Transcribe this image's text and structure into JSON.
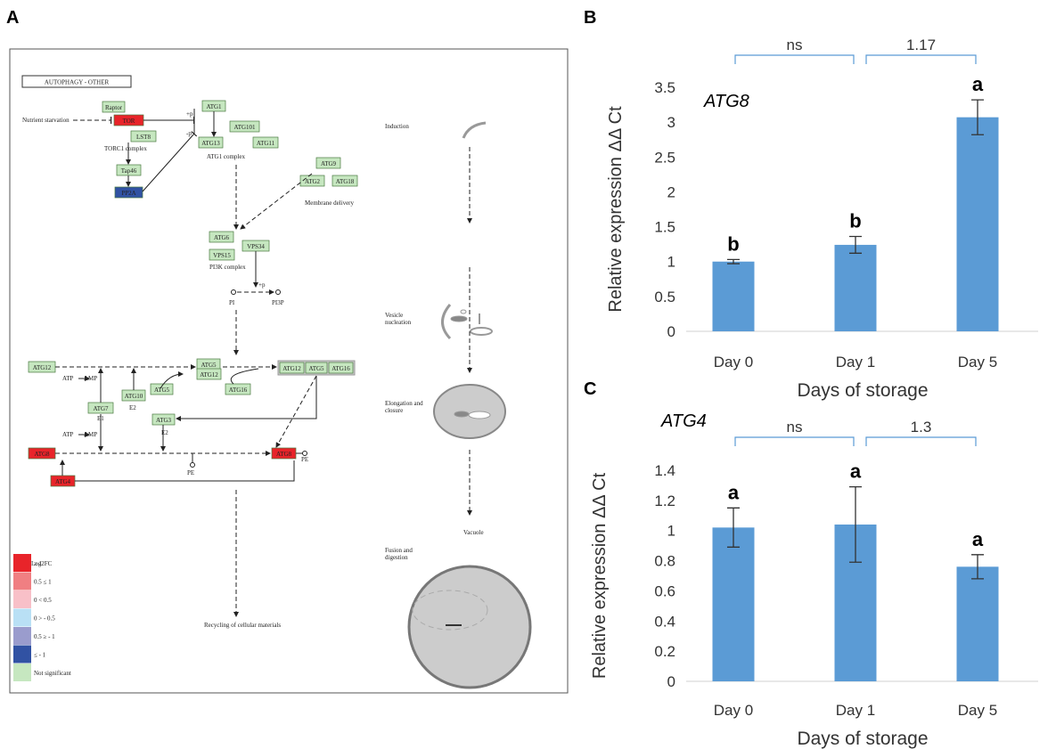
{
  "panel_labels": [
    "A",
    "B",
    "C"
  ],
  "diagram": {
    "title": "AUTOPHAGY - OTHER",
    "nodes": [
      {
        "label": "Raptor",
        "fill": "#c6e7c0"
      },
      {
        "label": "TOR",
        "fill": "#e8242a"
      },
      {
        "label": "LST8",
        "fill": "#c6e7c0"
      },
      {
        "label": "Tap46",
        "fill": "#c6e7c0"
      },
      {
        "label": "PP2A",
        "fill": "#3152a3"
      },
      {
        "label": "ATG1",
        "fill": "#c6e7c0"
      },
      {
        "label": "ATG101",
        "fill": "#c6e7c0"
      },
      {
        "label": "ATG13",
        "fill": "#c6e7c0"
      },
      {
        "label": "ATG11",
        "fill": "#c6e7c0"
      },
      {
        "label": "ATG9",
        "fill": "#c6e7c0"
      },
      {
        "label": "ATG2",
        "fill": "#c6e7c0"
      },
      {
        "label": "ATG18",
        "fill": "#c6e7c0"
      },
      {
        "label": "ATG6",
        "fill": "#c6e7c0"
      },
      {
        "label": "VPS34",
        "fill": "#c6e7c0"
      },
      {
        "label": "VPS15",
        "fill": "#c6e7c0"
      },
      {
        "label": "ATG12",
        "fill": "#c6e7c0"
      },
      {
        "label": "ATG5",
        "fill": "#c6e7c0"
      },
      {
        "label": "ATG12",
        "fill": "#c6e7c0"
      },
      {
        "label": "ATG5",
        "fill": "#c6e7c0"
      },
      {
        "label": "ATG16",
        "fill": "#c6e7c0"
      },
      {
        "label": "ATG10",
        "fill": "#c6e7c0"
      },
      {
        "label": "ATG7",
        "fill": "#c6e7c0"
      },
      {
        "label": "ATG3",
        "fill": "#c6e7c0"
      },
      {
        "label": "ATG8",
        "fill": "#e8242a"
      },
      {
        "label": "ATG8",
        "fill": "#e8242a"
      },
      {
        "label": "ATG4",
        "fill": "#e8242a"
      },
      {
        "label": "ATG12",
        "fill": "#c6e7c0"
      },
      {
        "label": "ATG5",
        "fill": "#c6e7c0"
      },
      {
        "label": "ATG16",
        "fill": "#c6e7c0"
      }
    ],
    "labels": [
      "Nutrient starvation",
      "TORC1 complex",
      "+p",
      "-p",
      "ATG1 complex",
      "Membrane delivery",
      "PI3K complex",
      "+p",
      "PI",
      "PI3P",
      "ATP",
      "AMP",
      "E2",
      "E1",
      "E2",
      "ATP",
      "AMP",
      "PE",
      "PE",
      "Recycling of cellular materials"
    ],
    "stages": [
      {
        "lines": [
          "Induction"
        ]
      },
      {
        "lines": [
          "Vesicle",
          "nucleation"
        ]
      },
      {
        "lines": [
          "Elongation and",
          "closure"
        ]
      },
      {
        "lines": [
          "Vacuole"
        ]
      },
      {
        "lines": [
          "Fusion and",
          "digestion"
        ]
      }
    ],
    "legend": {
      "title": "Log2FC",
      "items": [
        {
          "label": "≥ 1",
          "color": "#e8242a"
        },
        {
          "label": "0.5 ≤ 1",
          "color": "#f07f82"
        },
        {
          "label": "0 < 0.5",
          "color": "#f8c0c8"
        },
        {
          "label": "0 > - 0.5",
          "color": "#b9e0f5"
        },
        {
          "label": "0.5 ≥ - 1",
          "color": "#9a9ccd"
        },
        {
          "label": "≤ - 1",
          "color": "#3152a3"
        },
        {
          "label": "Not significant",
          "color": "#c6e7c0"
        }
      ]
    }
  },
  "chart_data": [
    {
      "type": "bar",
      "gene": "ATG8",
      "y_label": "Relative expression ΔΔ  Ct",
      "x_label": "Days of storage",
      "categories": [
        "Day 0",
        "Day 1",
        "Day 5"
      ],
      "values": [
        1.0,
        1.24,
        3.07
      ],
      "errors": [
        0.03,
        0.12,
        0.25
      ],
      "letters": [
        "b",
        "b",
        "a"
      ],
      "comparisons": [
        "ns",
        "1.17"
      ],
      "color": "#5b9bd5",
      "ylim": [
        0,
        3.5
      ],
      "yticks": [
        0,
        0.5,
        1,
        1.5,
        2,
        2.5,
        3,
        3.5
      ]
    },
    {
      "type": "bar",
      "gene": "ATG4",
      "y_label": "Relative expression ΔΔ  Ct",
      "x_label": "Days of storage",
      "categories": [
        "Day 0",
        "Day 1",
        "Day 5"
      ],
      "values": [
        1.02,
        1.04,
        0.76
      ],
      "errors": [
        0.13,
        0.25,
        0.08
      ],
      "letters": [
        "a",
        "a",
        "a"
      ],
      "comparisons": [
        "ns",
        "1.3"
      ],
      "color": "#5b9bd5",
      "ylim": [
        0,
        1.4
      ],
      "yticks": [
        0,
        0.2,
        0.4,
        0.6,
        0.8,
        1,
        1.2,
        1.4
      ]
    }
  ]
}
